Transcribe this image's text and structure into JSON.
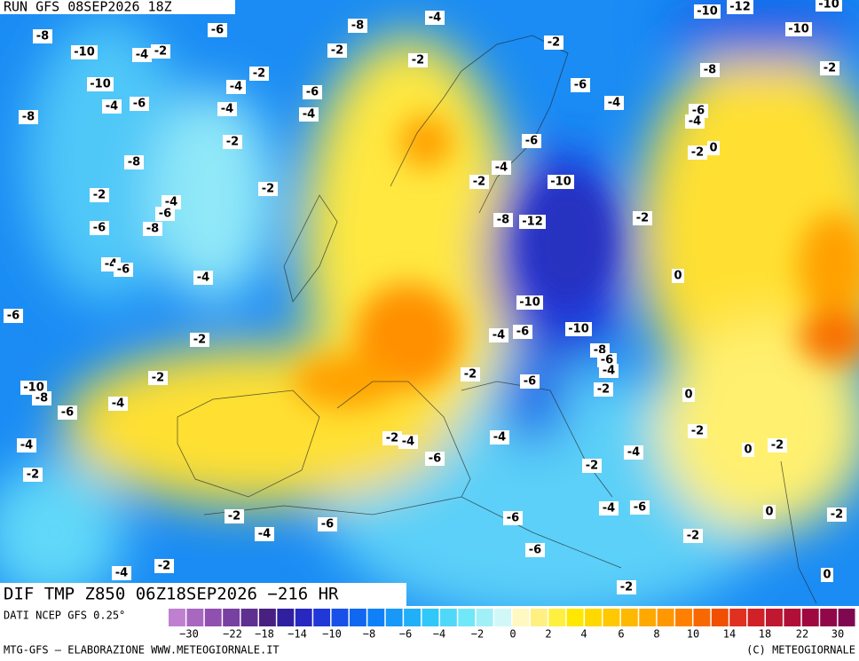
{
  "header": {
    "run": "RUN GFS 08SEP2026 18Z"
  },
  "map": {
    "title": "DIF TMP Z850 06Z18SEP2026 −216 HR",
    "labels": [
      "-4",
      "-8",
      "-6",
      "-8",
      "-10",
      "-4",
      "-2",
      "-2",
      "-2",
      "-2",
      "-6",
      "-8",
      "-10",
      "-10",
      "-12",
      "-10",
      "-2",
      "-10",
      "-2",
      "-4",
      "-6",
      "-8",
      "-4",
      "-6",
      "-4",
      "-4",
      "-4",
      "-6",
      "-4",
      "0",
      "-2",
      "-2",
      "-6",
      "-8",
      "-4",
      "-2",
      "-10",
      "-2",
      "-2",
      "-4",
      "-6",
      "-8",
      "-6",
      "-2",
      "-8",
      "-12",
      "-4",
      "-6",
      "-4",
      "0",
      "-10",
      "-6",
      "-10",
      "-4",
      "-6",
      "-2",
      "-8",
      "-6",
      "-4",
      "-2",
      "-2",
      "-6",
      "-2",
      "0",
      "-10",
      "-8",
      "-4",
      "-6",
      "-2",
      "-2",
      "-4",
      "-4",
      "-4",
      "0",
      "-2",
      "-6",
      "-4",
      "-2",
      "-2",
      "-2",
      "-6",
      "-6",
      "-4",
      "-6",
      "0",
      "-2",
      "-4",
      "-2",
      "-6",
      "-2",
      "-4",
      "-2",
      "0"
    ]
  },
  "colorbar": {
    "colors": [
      "#c080d0",
      "#a868c0",
      "#9050b0",
      "#7840a0",
      "#603090",
      "#482080",
      "#3020a0",
      "#2828c0",
      "#2038d8",
      "#1850e8",
      "#1068f0",
      "#1080f8",
      "#1898f8",
      "#20b0f8",
      "#30c8f8",
      "#50d8f8",
      "#70e8f8",
      "#a0f0f8",
      "#d0f8f8",
      "#fff8c0",
      "#fff080",
      "#fff040",
      "#ffe800",
      "#ffd800",
      "#ffc800",
      "#ffb800",
      "#ffa800",
      "#ff9800",
      "#ff8000",
      "#f86800",
      "#f05000",
      "#e03020",
      "#d02028",
      "#c01830",
      "#b01038",
      "#a00840",
      "#900848",
      "#800850"
    ],
    "ticks": [
      "−30",
      "−22",
      "−18",
      "−14",
      "−10",
      "−8",
      "−6",
      "−4",
      "−2",
      "0",
      "2",
      "4",
      "6",
      "8",
      "10",
      "14",
      "18",
      "22",
      "30"
    ]
  },
  "footer": {
    "source": "DATI NCEP GFS 0.25°",
    "credit": "MTG-GFS — ELABORAZIONE WWW.METEOGIORNALE.IT",
    "copyright": "(C) METEOGIORNALE"
  }
}
